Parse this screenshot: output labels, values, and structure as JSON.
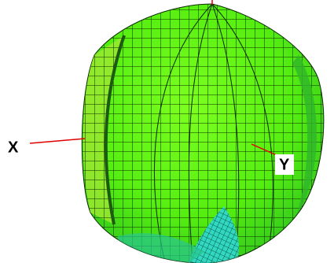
{
  "axes": {
    "x_label": "X",
    "y_label": "Y"
  }
}
